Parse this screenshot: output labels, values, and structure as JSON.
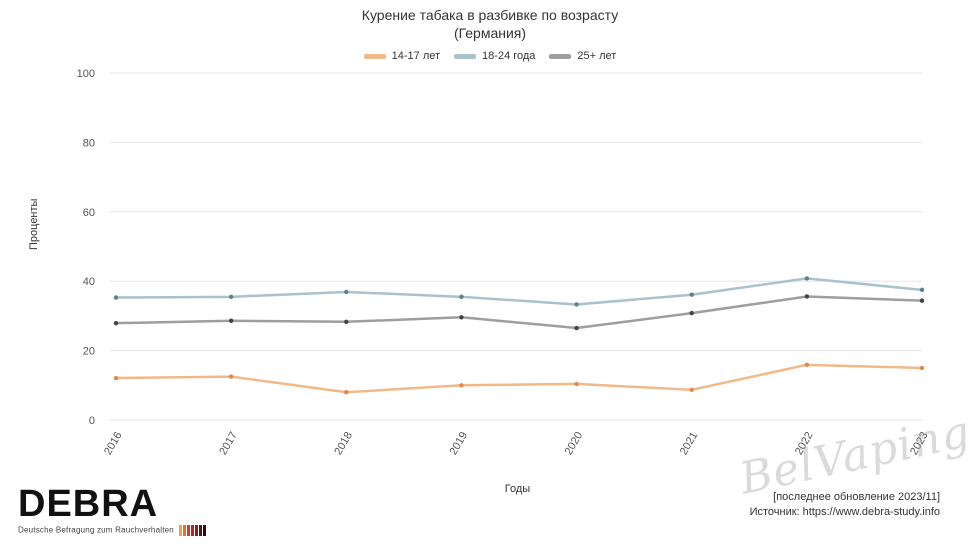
{
  "chart_data": {
    "type": "line",
    "title": "Курение табака в разбивке по возрасту",
    "subtitle": "(Германия)",
    "xlabel": "Годы",
    "ylabel": "Проценты",
    "ylim": [
      0,
      100
    ],
    "yticks": [
      "0",
      "20",
      "40",
      "60",
      "80",
      "100"
    ],
    "x": [
      "2016",
      "2017",
      "2018",
      "2019",
      "2020",
      "2021",
      "2022",
      "2023"
    ],
    "series": [
      {
        "name": "14-17 лет",
        "color": "#f0b98a",
        "values": [
          12.1,
          12.5,
          8,
          10,
          10.4,
          8.7,
          15.9,
          15
        ]
      },
      {
        "name": "18-24 года",
        "color": "#a9c2cc",
        "values": [
          35.3,
          35.5,
          36.9,
          35.5,
          33.3,
          36.1,
          40.8,
          37.5
        ]
      },
      {
        "name": "25+ лет",
        "color": "#9e9e9e",
        "values": [
          27.9,
          28.6,
          28.3,
          29.6,
          26.5,
          30.8,
          35.6,
          34.4
        ]
      }
    ],
    "grid": true,
    "legend_position": "top-center"
  },
  "branding": {
    "logo_text": "DEBRA",
    "logo_subtitle": "Deutsche Befragung zum Rauchverhalten",
    "watermark": "BelVaping"
  },
  "footnote": {
    "updated": "[последнее обновление 2023/11]",
    "source": "Источник: https://www.debra-study.info"
  }
}
